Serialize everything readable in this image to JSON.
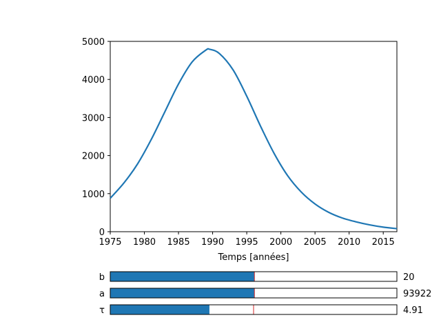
{
  "chart_data": {
    "type": "line",
    "xlabel": "Temps [années]",
    "ylabel": "",
    "title": "",
    "xlim": [
      1975,
      2017
    ],
    "ylim": [
      0,
      5000
    ],
    "x_ticks": [
      1975,
      1980,
      1985,
      1990,
      1995,
      2000,
      2005,
      2010,
      2015
    ],
    "y_ticks": [
      0,
      1000,
      2000,
      3000,
      4000,
      5000
    ],
    "grid": false,
    "line_color": "#1f77b4",
    "series": [
      {
        "x": [
          1975,
          1977,
          1979,
          1981,
          1983,
          1985,
          1987,
          1989,
          1989.6,
          1991,
          1993,
          1995,
          1997,
          1999,
          2001,
          2003,
          2005,
          2007,
          2009,
          2011,
          2013,
          2015,
          2017
        ],
        "y": [
          880,
          1280,
          1780,
          2420,
          3150,
          3880,
          4460,
          4770,
          4790,
          4680,
          4250,
          3560,
          2780,
          2060,
          1470,
          1040,
          730,
          510,
          360,
          260,
          180,
          120,
          80
        ]
      }
    ]
  },
  "sliders": [
    {
      "label": "b",
      "value_text": "20",
      "fill_fraction": 0.503,
      "init_fraction": 0.503,
      "color": "#1f77b4",
      "marker_color": "#d62728"
    },
    {
      "label": "a",
      "value_text": "93922",
      "fill_fraction": 0.503,
      "init_fraction": 0.503,
      "color": "#1f77b4",
      "marker_color": "#d62728"
    },
    {
      "label": "τ",
      "value_text": "4.91",
      "fill_fraction": 0.346,
      "init_fraction": 0.5,
      "color": "#1f77b4",
      "marker_color": "#d62728"
    }
  ]
}
